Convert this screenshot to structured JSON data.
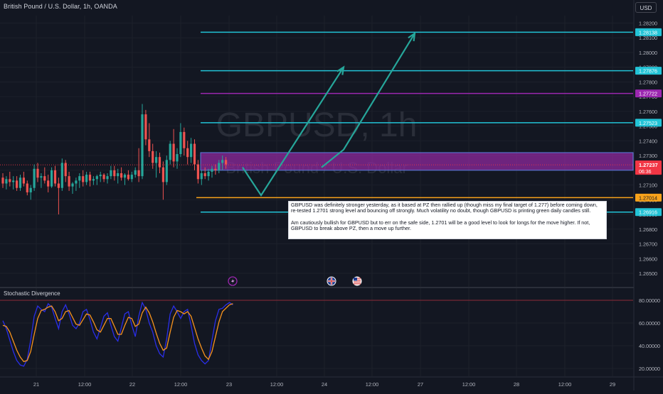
{
  "header": {
    "symbol_title": "British Pound / U.S. Dollar, 1h, OANDA",
    "currency_button": "USD"
  },
  "watermark": {
    "line1": "GBPUSD, 1h",
    "line2": "British Pound / U.S. Dollar"
  },
  "note": {
    "paragraph1": "GBPUSD was definitely stronger yesterday, as it based at PZ then rallied up (though miss my final target of 1.277) before coming down, re-tested 1.2701 strong level and bouncing off strongly. Much volatility no doubt, though GBPUSD is printing green daily candles still.",
    "paragraph2": "Am cautiously bullish for GBPUSD but to err on the safe side, 1.2701 will be a good level to look for longs for the move higher. If not, GBPUSD to break above PZ, then a move up further."
  },
  "indicator": {
    "title": "Stochastic Divergence"
  },
  "colors": {
    "background": "#131722",
    "up_candle": "#26a69a",
    "down_candle": "#ef5350",
    "cyan_line": "#22c3d6",
    "purple_line": "#9c27b0",
    "orange_line": "#f7a21b",
    "zone_fill": "#8e2a9e",
    "projection_arrow": "#26a69a",
    "stoch_k": "#2a2ee8",
    "stoch_d": "#f7931e",
    "current_price_tag": "#f23645"
  },
  "event_icons": [
    "lightning-icon",
    "uk-flag-icon",
    "us-flag-icon"
  ],
  "chart_data": {
    "type": "candlestick",
    "ylim": [
      1.264,
      1.2832
    ],
    "price_ticks": [
      "1.28200",
      "1.28100",
      "1.28000",
      "1.27900",
      "1.27800",
      "1.27700",
      "1.27600",
      "1.27500",
      "1.27400",
      "1.27300",
      "1.27200",
      "1.27100",
      "1.27000",
      "1.26900",
      "1.26800",
      "1.26700",
      "1.26600",
      "1.26500"
    ],
    "x_ticks": [
      "21",
      "12:00",
      "22",
      "12:00",
      "23",
      "12:00",
      "24",
      "12:00",
      "27",
      "12:00",
      "28",
      "12:00",
      "29"
    ],
    "horizontal_levels": [
      {
        "price": 1.28138,
        "label": "1.28138",
        "color": "#22c3d6"
      },
      {
        "price": 1.27876,
        "label": "1.27876",
        "color": "#22c3d6"
      },
      {
        "price": 1.27722,
        "label": "1.27722",
        "color": "#9c27b0"
      },
      {
        "price": 1.27523,
        "label": "1.27523",
        "color": "#22c3d6"
      },
      {
        "price": 1.27014,
        "label": "1.27014",
        "color": "#f7a21b"
      },
      {
        "price": 1.26916,
        "label": "1.26916",
        "color": "#22c3d6"
      }
    ],
    "zone": {
      "top": 1.2732,
      "bottom": 1.272
    },
    "current_price": {
      "price": 1.27237,
      "label": "1.27237",
      "countdown": "06:36"
    },
    "candles_ohlc": [
      [
        1.2715,
        1.2718,
        1.2708,
        1.2711
      ],
      [
        1.2711,
        1.2716,
        1.2707,
        1.2714
      ],
      [
        1.2714,
        1.2719,
        1.2709,
        1.2712
      ],
      [
        1.2712,
        1.2716,
        1.2707,
        1.2713
      ],
      [
        1.2713,
        1.2716,
        1.2706,
        1.2708
      ],
      [
        1.2708,
        1.2717,
        1.2706,
        1.2715
      ],
      [
        1.2715,
        1.2719,
        1.2709,
        1.2711
      ],
      [
        1.2711,
        1.2713,
        1.2703,
        1.2705
      ],
      [
        1.2705,
        1.271,
        1.27,
        1.2708
      ],
      [
        1.2708,
        1.2724,
        1.2706,
        1.2721
      ],
      [
        1.2721,
        1.2725,
        1.2712,
        1.2715
      ],
      [
        1.2715,
        1.2718,
        1.2708,
        1.2716
      ],
      [
        1.2716,
        1.2722,
        1.2711,
        1.2713
      ],
      [
        1.2713,
        1.2717,
        1.2705,
        1.2709
      ],
      [
        1.2709,
        1.2722,
        1.2708,
        1.272
      ],
      [
        1.272,
        1.2723,
        1.2709,
        1.2711
      ],
      [
        1.2711,
        1.2715,
        1.269,
        1.2708
      ],
      [
        1.2708,
        1.2728,
        1.2706,
        1.2725
      ],
      [
        1.2725,
        1.2727,
        1.2712,
        1.2716
      ],
      [
        1.2716,
        1.2719,
        1.2706,
        1.2709
      ],
      [
        1.2709,
        1.2712,
        1.2704,
        1.2711
      ],
      [
        1.2711,
        1.2715,
        1.2706,
        1.2713
      ],
      [
        1.2713,
        1.2718,
        1.2708,
        1.2716
      ],
      [
        1.2716,
        1.272,
        1.2709,
        1.2712
      ],
      [
        1.2712,
        1.2719,
        1.271,
        1.2717
      ],
      [
        1.2717,
        1.2719,
        1.2709,
        1.2713
      ],
      [
        1.2713,
        1.2716,
        1.271,
        1.2714
      ],
      [
        1.2714,
        1.2717,
        1.271,
        1.2716
      ],
      [
        1.2716,
        1.2719,
        1.2712,
        1.2717
      ],
      [
        1.2717,
        1.2718,
        1.2712,
        1.2714
      ],
      [
        1.2714,
        1.2718,
        1.2711,
        1.2716
      ],
      [
        1.2716,
        1.2723,
        1.2714,
        1.272
      ],
      [
        1.272,
        1.2723,
        1.2713,
        1.2716
      ],
      [
        1.2716,
        1.2721,
        1.2711,
        1.2718
      ],
      [
        1.2718,
        1.2722,
        1.2713,
        1.2715
      ],
      [
        1.2715,
        1.2718,
        1.271,
        1.2717
      ],
      [
        1.2717,
        1.272,
        1.2713,
        1.2714
      ],
      [
        1.2714,
        1.2719,
        1.2712,
        1.2717
      ],
      [
        1.2717,
        1.2722,
        1.2715,
        1.272
      ],
      [
        1.272,
        1.2735,
        1.2712,
        1.2716
      ],
      [
        1.2716,
        1.2765,
        1.2714,
        1.2758
      ],
      [
        1.2758,
        1.2761,
        1.2737,
        1.2741
      ],
      [
        1.2741,
        1.2752,
        1.2729,
        1.2733
      ],
      [
        1.2733,
        1.2738,
        1.2721,
        1.2725
      ],
      [
        1.2725,
        1.2733,
        1.2715,
        1.2729
      ],
      [
        1.2729,
        1.2732,
        1.2718,
        1.2722
      ],
      [
        1.2722,
        1.2726,
        1.27,
        1.2712
      ],
      [
        1.2712,
        1.273,
        1.271,
        1.2727
      ],
      [
        1.2727,
        1.274,
        1.2724,
        1.2738
      ],
      [
        1.2738,
        1.2748,
        1.2722,
        1.2726
      ],
      [
        1.2726,
        1.2735,
        1.2721,
        1.2731
      ],
      [
        1.2731,
        1.2752,
        1.2729,
        1.2746
      ],
      [
        1.2746,
        1.2749,
        1.273,
        1.2735
      ],
      [
        1.2735,
        1.274,
        1.2724,
        1.2729
      ],
      [
        1.2729,
        1.2742,
        1.2725,
        1.2738
      ],
      [
        1.2738,
        1.2741,
        1.272,
        1.2724
      ],
      [
        1.2724,
        1.2727,
        1.2711,
        1.2714
      ],
      [
        1.2714,
        1.272,
        1.271,
        1.2718
      ],
      [
        1.2718,
        1.2722,
        1.2714,
        1.2716
      ],
      [
        1.2716,
        1.2721,
        1.2713,
        1.2719
      ],
      [
        1.2719,
        1.2723,
        1.2715,
        1.2721
      ],
      [
        1.2721,
        1.2724,
        1.2717,
        1.272
      ],
      [
        1.272,
        1.2727,
        1.2718,
        1.2725
      ],
      [
        1.2725,
        1.273,
        1.272,
        1.2727
      ],
      [
        1.2727,
        1.2729,
        1.2721,
        1.2724
      ]
    ],
    "projection_paths": [
      [
        [
          "23",
          1.2722
        ],
        [
          "23 12:00",
          1.2703
        ],
        [
          "24 12:00",
          1.279
        ]
      ],
      [
        [
          "24",
          1.2722
        ],
        [
          "24 12:00",
          1.2734
        ],
        [
          "27",
          1.2813
        ]
      ]
    ],
    "stochastic": {
      "ylim": [
        20,
        80
      ],
      "ticks": [
        "80.00000",
        "60.00000",
        "40.00000",
        "20.00000"
      ],
      "k": [
        62,
        55,
        45,
        35,
        27,
        23,
        22,
        28,
        45,
        66,
        75,
        72,
        70,
        77,
        74,
        64,
        55,
        70,
        76,
        68,
        58,
        55,
        60,
        70,
        72,
        63,
        52,
        46,
        56,
        66,
        69,
        58,
        48,
        44,
        56,
        68,
        70,
        58,
        48,
        66,
        78,
        72,
        60,
        52,
        40,
        33,
        30,
        46,
        68,
        75,
        70,
        64,
        70,
        72,
        58,
        42,
        32,
        27,
        24,
        27,
        45,
        62,
        72,
        73,
        76,
        78,
        76
      ],
      "d": [
        58,
        57,
        52,
        44,
        36,
        30,
        26,
        27,
        35,
        50,
        64,
        71,
        72,
        74,
        75,
        70,
        62,
        64,
        70,
        71,
        65,
        59,
        58,
        63,
        68,
        67,
        61,
        54,
        52,
        58,
        64,
        64,
        57,
        50,
        50,
        58,
        65,
        64,
        57,
        59,
        69,
        74,
        69,
        61,
        51,
        42,
        36,
        38,
        52,
        65,
        71,
        70,
        68,
        70,
        66,
        56,
        46,
        38,
        31,
        28,
        35,
        48,
        61,
        70,
        73,
        76,
        77
      ]
    }
  }
}
